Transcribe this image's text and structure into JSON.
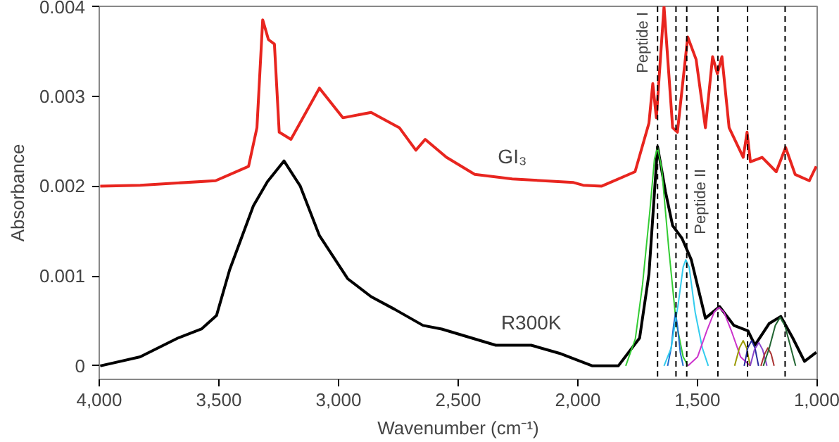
{
  "chart_data": {
    "type": "line",
    "xlabel": "Wavenumber (cm⁻¹)",
    "ylabel": "Absorbance",
    "xlim": [
      4000,
      1000
    ],
    "ylim": [
      -0.00015,
      0.004
    ],
    "xticks": [
      {
        "value": 4000,
        "label": "4,000"
      },
      {
        "value": 3500,
        "label": "3,500"
      },
      {
        "value": 3000,
        "label": "3,000"
      },
      {
        "value": 2500,
        "label": "2,500"
      },
      {
        "value": 2000,
        "label": "2,000"
      },
      {
        "value": 1500,
        "label": "1,500"
      },
      {
        "value": 1000,
        "label": "1,000"
      }
    ],
    "yticks": [
      0,
      0.001,
      0.002,
      0.003,
      0.004
    ],
    "grid": false,
    "legend": false,
    "line_style": "solid",
    "marker": "none",
    "series": [
      {
        "name": "GI₃",
        "color": "#e8251f",
        "x": [
          3996,
          3829,
          3514,
          3376,
          3341,
          3317,
          3293,
          3268,
          3248,
          3199,
          3080,
          2982,
          2864,
          2746,
          2677,
          2638,
          2549,
          2431,
          2274,
          2018,
          1978,
          1900,
          1761,
          1703,
          1687,
          1672,
          1640,
          1604,
          1584,
          1541,
          1506,
          1467,
          1437,
          1417,
          1398,
          1368,
          1309,
          1293,
          1279,
          1230,
          1171,
          1132,
          1092,
          1033,
          1004
        ],
        "values": [
          0.002,
          0.00201,
          0.00206,
          0.00222,
          0.00265,
          0.00385,
          0.00363,
          0.00358,
          0.0026,
          0.00252,
          0.00309,
          0.00276,
          0.00282,
          0.00265,
          0.0024,
          0.00252,
          0.00232,
          0.00213,
          0.00208,
          0.00204,
          0.00201,
          0.002,
          0.00216,
          0.0027,
          0.00314,
          0.00276,
          0.004,
          0.00265,
          0.0026,
          0.00366,
          0.00341,
          0.00265,
          0.00344,
          0.00325,
          0.00344,
          0.00265,
          0.00232,
          0.0026,
          0.00227,
          0.00232,
          0.00216,
          0.00243,
          0.00213,
          0.00206,
          0.00222
        ]
      },
      {
        "name": "R300K",
        "color": "#000000",
        "x": [
          3996,
          3829,
          3671,
          3573,
          3510,
          3455,
          3356,
          3297,
          3228,
          3160,
          3080,
          2962,
          2864,
          2766,
          2647,
          2569,
          2343,
          2195,
          2077,
          1939,
          1831,
          1742,
          1703,
          1667,
          1634,
          1604,
          1565,
          1526,
          1467,
          1408,
          1348,
          1289,
          1260,
          1201,
          1152,
          1102,
          1053,
          1004
        ],
        "values": [
          0,
          0.0001,
          0.00031,
          0.00041,
          0.00056,
          0.00107,
          0.00178,
          0.00205,
          0.00228,
          0.002,
          0.00145,
          0.00097,
          0.00077,
          0.00063,
          0.00045,
          0.00041,
          0.00023,
          0.00023,
          0.00014,
          0,
          0,
          0.00031,
          0.00102,
          0.00244,
          0.00194,
          0.00156,
          0.00142,
          0.00118,
          0.00053,
          0.00066,
          0.00045,
          0.00039,
          0.00023,
          0.00047,
          0.00055,
          0.00031,
          5e-05,
          0.00015
        ]
      },
      {
        "color": "#33cc33",
        "x": [
          1800,
          1760,
          1730,
          1700,
          1680,
          1667,
          1650,
          1620,
          1590,
          1560,
          1540
        ],
        "values": [
          0,
          0.0003,
          0.0009,
          0.0017,
          0.0023,
          0.00243,
          0.0022,
          0.0013,
          0.0005,
          0.0001,
          0
        ]
      },
      {
        "color": "#1f6fd0",
        "x": [
          1625,
          1610,
          1600,
          1592,
          1584,
          1572,
          1560
        ],
        "values": [
          0,
          0.0002,
          0.00045,
          0.00059,
          0.00045,
          0.00015,
          0
        ]
      },
      {
        "color": "#33ccee",
        "x": [
          1640,
          1610,
          1580,
          1560,
          1549,
          1535,
          1510,
          1480,
          1455
        ],
        "values": [
          0,
          0.0002,
          0.0007,
          0.0011,
          0.00118,
          0.0011,
          0.0006,
          0.0002,
          0
        ]
      },
      {
        "color": "#cc33cc",
        "x": [
          1540,
          1500,
          1460,
          1430,
          1411,
          1390,
          1360,
          1320,
          1280
        ],
        "values": [
          0,
          0.0001,
          0.0004,
          0.0006,
          0.00065,
          0.0006,
          0.0004,
          0.0001,
          0
        ]
      },
      {
        "color": "#999900",
        "x": [
          1345,
          1325,
          1309,
          1295,
          1280
        ],
        "values": [
          0,
          0.0002,
          0.00028,
          0.0002,
          0
        ]
      },
      {
        "color": "#2a2aa0",
        "x": [
          1305,
          1290,
          1274,
          1260,
          1245
        ],
        "values": [
          0,
          0.0002,
          0.00028,
          0.0002,
          0
        ]
      },
      {
        "color": "#8844cc",
        "x": [
          1280,
          1262,
          1244,
          1228,
          1210
        ],
        "values": [
          0,
          0.00018,
          0.00026,
          0.00018,
          0
        ]
      },
      {
        "color": "#aa3333",
        "x": [
          1235,
          1220,
          1206,
          1192,
          1180
        ],
        "values": [
          0,
          0.00013,
          0.0002,
          0.00013,
          0
        ]
      },
      {
        "color": "#226633",
        "x": [
          1225,
          1200,
          1175,
          1155,
          1135,
          1110,
          1090
        ],
        "values": [
          0,
          0.0002,
          0.00045,
          0.00054,
          0.00045,
          0.0002,
          0
        ]
      }
    ],
    "ref_lines": [
      {
        "axis": "x",
        "value": 1667,
        "label": "Peptide I",
        "line_style": "dashed",
        "color": "#000000"
      },
      {
        "axis": "x",
        "value": 1590,
        "line_style": "dashed",
        "color": "#000000"
      },
      {
        "axis": "x",
        "value": 1545,
        "label": "Peptide II",
        "line_style": "dashed",
        "color": "#000000"
      },
      {
        "axis": "x",
        "value": 1415,
        "line_style": "dashed",
        "color": "#000000"
      },
      {
        "axis": "x",
        "value": 1291,
        "line_style": "dashed",
        "color": "#000000"
      },
      {
        "axis": "x",
        "value": 1134,
        "line_style": "dashed",
        "color": "#000000"
      }
    ]
  }
}
